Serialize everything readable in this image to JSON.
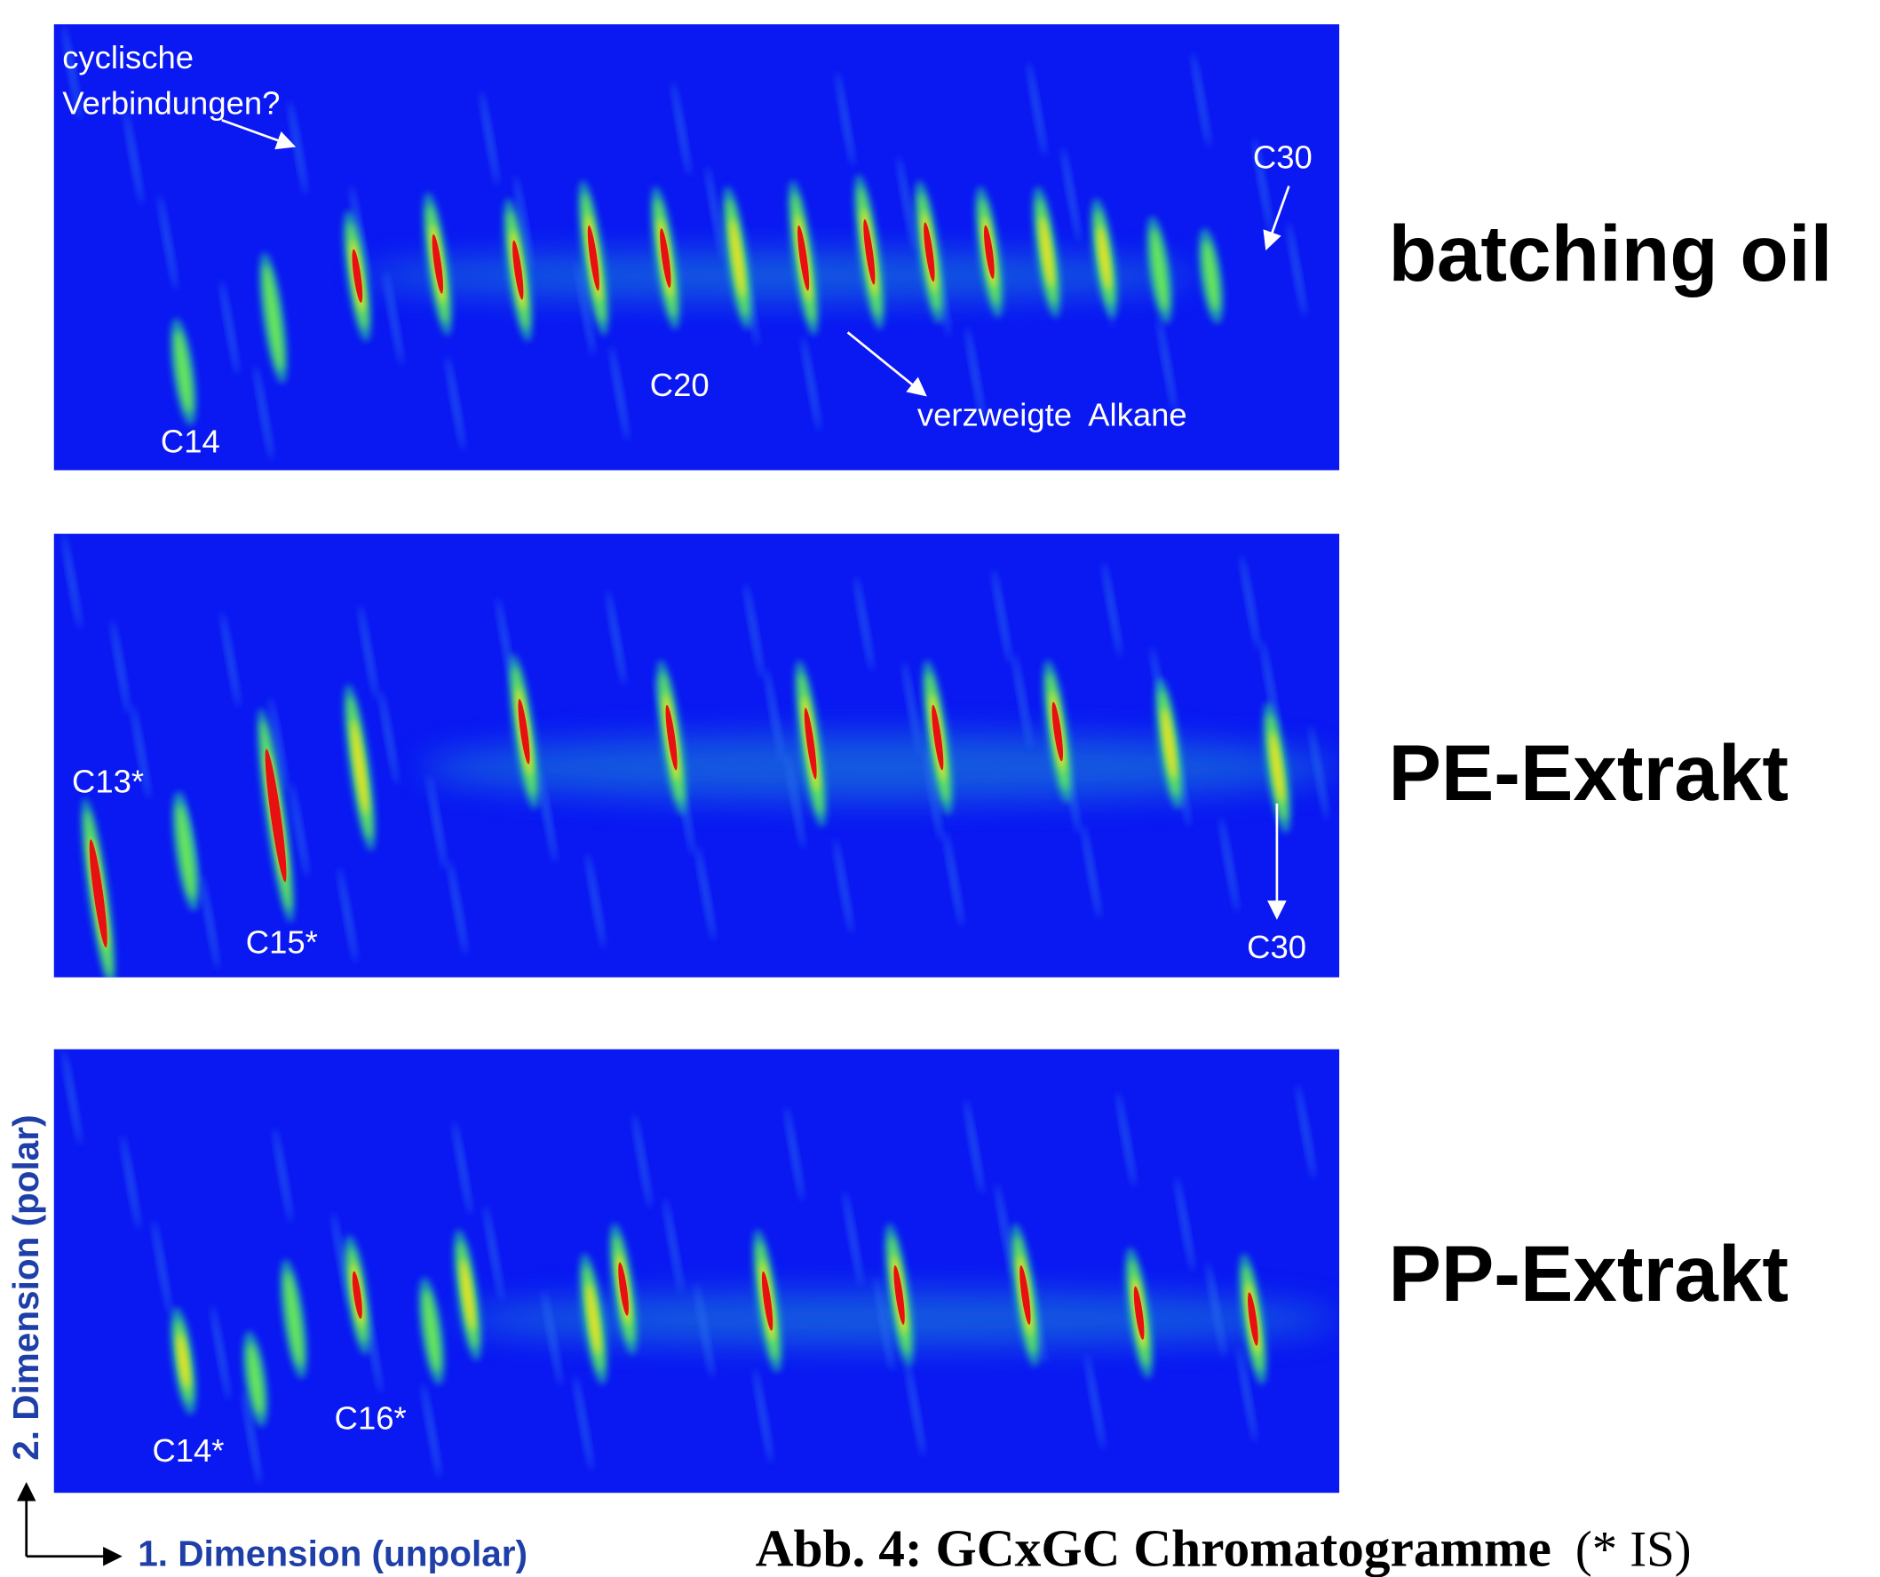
{
  "panels": [
    {
      "label": "batching oil",
      "annotations": [
        "cyclische",
        "Verbindungen?",
        "C30",
        "C20",
        "verzweigte  Alkane",
        "C14"
      ]
    },
    {
      "label": "PE-Extrakt",
      "annotations": [
        "C13*",
        "C15*",
        "C30"
      ]
    },
    {
      "label": "PP-Extrakt",
      "annotations": [
        "C14*",
        "C16*"
      ]
    }
  ],
  "axes": {
    "x": "1. Dimension (unpolar)",
    "y": "2. Dimension (polar)"
  },
  "caption": {
    "title": "Abb. 4: GCxGC Chromatogramme",
    "note": "(* IS)"
  }
}
